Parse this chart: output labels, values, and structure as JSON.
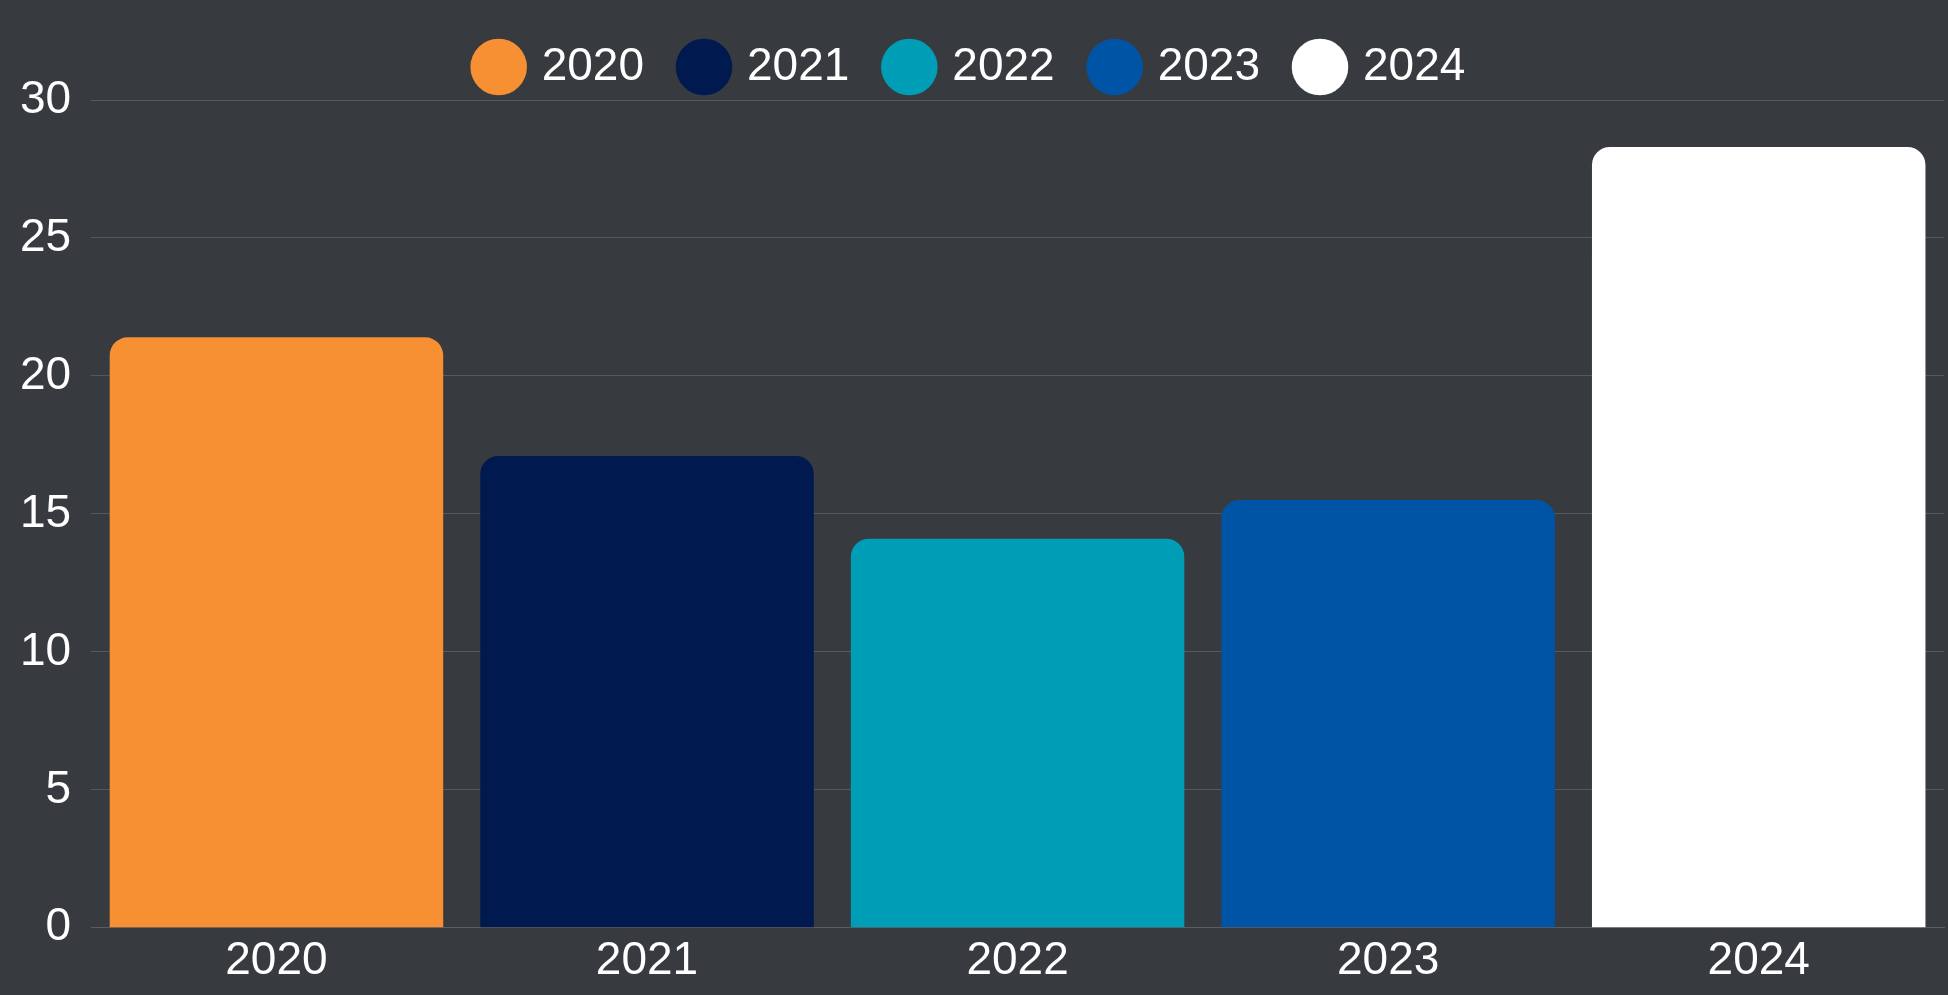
{
  "chart_data": {
    "type": "bar",
    "categories": [
      "2020",
      "2021",
      "2022",
      "2023",
      "2024"
    ],
    "series": [
      {
        "name": "2020",
        "color": "#f78f33",
        "values": [
          21.4,
          null,
          null,
          null,
          null
        ]
      },
      {
        "name": "2021",
        "color": "#00194f",
        "values": [
          null,
          17.1,
          null,
          null,
          null
        ]
      },
      {
        "name": "2022",
        "color": "#009db7",
        "values": [
          null,
          null,
          14.1,
          null,
          null
        ]
      },
      {
        "name": "2023",
        "color": "#0054a6",
        "values": [
          null,
          null,
          null,
          15.5,
          null
        ]
      },
      {
        "name": "2024",
        "color": "#ffffff",
        "values": [
          null,
          null,
          null,
          null,
          28.3
        ]
      }
    ],
    "ylim": [
      0,
      30
    ],
    "yticks": [
      0,
      5,
      10,
      15,
      20,
      25,
      30
    ],
    "grid": "y",
    "legend": "top"
  }
}
